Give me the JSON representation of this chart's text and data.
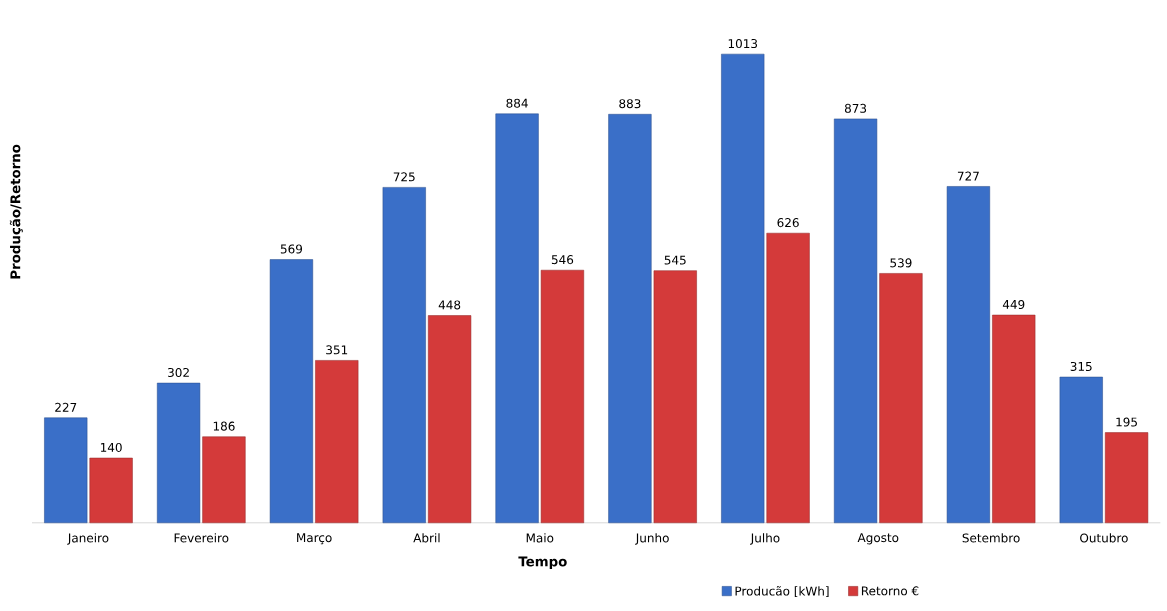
{
  "chart_data": {
    "type": "bar",
    "xlabel": "Tempo",
    "ylabel": "Produção/Retorno",
    "categories": [
      "Janeiro",
      "Fevereiro",
      "Março",
      "Abril",
      "Maio",
      "Junho",
      "Julho",
      "Agosto",
      "Setembro",
      "Outubro"
    ],
    "series": [
      {
        "name": "Producão [kWh]",
        "color": "#3a6fc8",
        "values": [
          227,
          302,
          569,
          725,
          884,
          883,
          1013,
          873,
          727,
          315
        ]
      },
      {
        "name": "Retorno €",
        "color": "#d43a3a",
        "values": [
          140,
          186,
          351,
          448,
          546,
          545,
          626,
          539,
          449,
          195
        ]
      }
    ],
    "data_labels": true,
    "legend": "bottom"
  }
}
